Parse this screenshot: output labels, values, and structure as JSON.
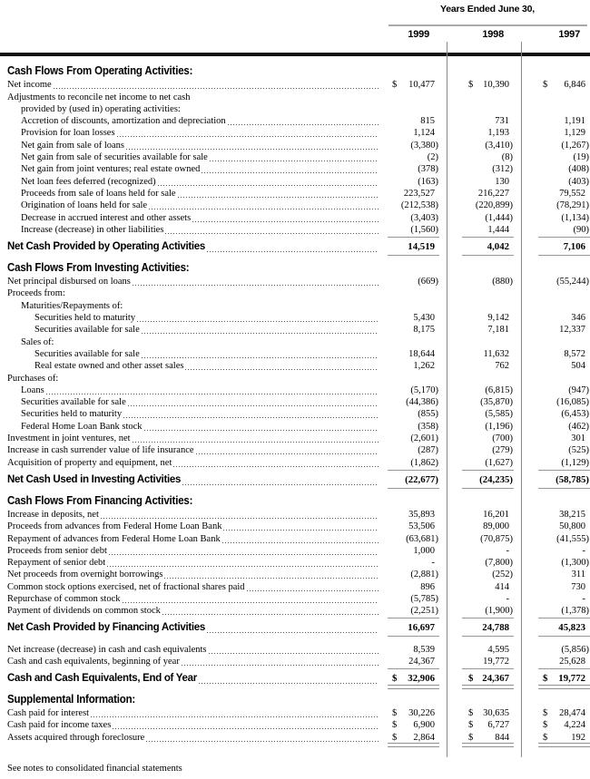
{
  "colors": {
    "thick_rule": "#111111",
    "column_divider": "#8a8a8a",
    "underline": "#979797",
    "text": "#000000"
  },
  "header": {
    "period_label": "Years Ended June 30,",
    "years": [
      "1999",
      "1998",
      "1997"
    ]
  },
  "statement": {
    "sections": [
      {
        "title": "Cash Flows From Operating Activities:",
        "rows": [
          {
            "type": "item",
            "label": "Net income",
            "indent": 0,
            "dollar": true,
            "values": [
              "10,477",
              "10,390",
              "6,846"
            ]
          },
          {
            "type": "plain",
            "label": "Adjustments to reconcile net income to net cash",
            "indent": 0
          },
          {
            "type": "plain",
            "label": "provided by (used in) operating activities:",
            "indent": 1
          },
          {
            "type": "item",
            "label": "Accretion of discounts, amortization and depreciation",
            "indent": 1,
            "values": [
              "815",
              "731",
              "1,191"
            ]
          },
          {
            "type": "item",
            "label": "Provision for loan losses",
            "indent": 1,
            "values": [
              "1,124",
              "1,193",
              "1,129"
            ]
          },
          {
            "type": "item",
            "label": "Net gain from sale of loans",
            "indent": 1,
            "values": [
              "(3,380)",
              "(3,410)",
              "(1,267)"
            ]
          },
          {
            "type": "item",
            "label": "Net gain from sale of securities available for sale",
            "indent": 1,
            "values": [
              "(2)",
              "(8)",
              "(19)"
            ]
          },
          {
            "type": "item",
            "label": "Net gain from joint ventures; real estate owned",
            "indent": 1,
            "values": [
              "(378)",
              "(312)",
              "(408)"
            ]
          },
          {
            "type": "item",
            "label": "Net loan fees deferred (recognized)",
            "indent": 1,
            "values": [
              "(163)",
              "130",
              "(403)"
            ]
          },
          {
            "type": "item",
            "label": "Proceeds from sale of loans held for sale",
            "indent": 1,
            "values": [
              "223,527",
              "216,227",
              "79,552"
            ]
          },
          {
            "type": "item",
            "label": "Origination of loans held for sale",
            "indent": 1,
            "values": [
              "(212,538)",
              "(220,899)",
              "(78,291)"
            ]
          },
          {
            "type": "item",
            "label": "Decrease in accrued interest and other assets",
            "indent": 1,
            "values": [
              "(3,403)",
              "(1,444)",
              "(1,134)"
            ]
          },
          {
            "type": "item",
            "label": "Increase (decrease) in other liabilities",
            "indent": 1,
            "values": [
              "(1,560)",
              "1,444",
              "(90)"
            ],
            "underline": 1
          },
          {
            "type": "total",
            "label": "Net Cash Provided by Operating Activities",
            "values": [
              "14,519",
              "4,042",
              "7,106"
            ],
            "underline": 1
          }
        ]
      },
      {
        "title": "Cash Flows From Investing Activities:",
        "rows": [
          {
            "type": "item",
            "label": "Net principal disbursed on loans",
            "indent": 0,
            "values": [
              "(669)",
              "(880)",
              "(55,244)"
            ]
          },
          {
            "type": "plain",
            "label": "Proceeds from:",
            "indent": 0
          },
          {
            "type": "plain",
            "label": "Maturities/Repayments of:",
            "indent": 1
          },
          {
            "type": "item",
            "label": "Securities held to maturity",
            "indent": 2,
            "values": [
              "5,430",
              "9,142",
              "346"
            ]
          },
          {
            "type": "item",
            "label": "Securities available for sale",
            "indent": 2,
            "values": [
              "8,175",
              "7,181",
              "12,337"
            ]
          },
          {
            "type": "plain",
            "label": "Sales of:",
            "indent": 1
          },
          {
            "type": "item",
            "label": "Securities available for sale",
            "indent": 2,
            "values": [
              "18,644",
              "11,632",
              "8,572"
            ]
          },
          {
            "type": "item",
            "label": "Real estate owned and other asset sales",
            "indent": 2,
            "values": [
              "1,262",
              "762",
              "504"
            ]
          },
          {
            "type": "plain",
            "label": "Purchases of:",
            "indent": 0
          },
          {
            "type": "item",
            "label": "Loans",
            "indent": 1,
            "values": [
              "(5,170)",
              "(6,815)",
              "(947)"
            ]
          },
          {
            "type": "item",
            "label": "Securities available for sale",
            "indent": 1,
            "values": [
              "(44,386)",
              "(35,870)",
              "(16,085)"
            ]
          },
          {
            "type": "item",
            "label": "Securities held to maturity",
            "indent": 1,
            "values": [
              "(855)",
              "(5,585)",
              "(6,453)"
            ]
          },
          {
            "type": "item",
            "label": "Federal Home Loan Bank stock",
            "indent": 1,
            "values": [
              "(358)",
              "(1,196)",
              "(462)"
            ]
          },
          {
            "type": "item",
            "label": "Investment in joint ventures, net",
            "indent": 0,
            "values": [
              "(2,601)",
              "(700)",
              "301"
            ]
          },
          {
            "type": "item",
            "label": "Increase in cash surrender value of life insurance",
            "indent": 0,
            "values": [
              "(287)",
              "(279)",
              "(525)"
            ]
          },
          {
            "type": "item",
            "label": "Acquisition of property and equipment, net",
            "indent": 0,
            "values": [
              "(1,862)",
              "(1,627)",
              "(1,129)"
            ],
            "underline": 1
          },
          {
            "type": "total",
            "label": "Net Cash Used in Investing Activities",
            "values": [
              "(22,677)",
              "(24,235)",
              "(58,785)"
            ],
            "underline": 1
          }
        ]
      },
      {
        "title": "Cash Flows From Financing Activities:",
        "rows": [
          {
            "type": "item",
            "label": "Increase in deposits, net",
            "indent": 0,
            "values": [
              "35,893",
              "16,201",
              "38,215"
            ]
          },
          {
            "type": "item",
            "label": "Proceeds from advances from Federal Home Loan Bank",
            "indent": 0,
            "values": [
              "53,506",
              "89,000",
              "50,800"
            ]
          },
          {
            "type": "item",
            "label": "Repayment of advances from Federal Home Loan Bank",
            "indent": 0,
            "values": [
              "(63,681)",
              "(70,875)",
              "(41,555)"
            ]
          },
          {
            "type": "item",
            "label": "Proceeds from senior debt",
            "indent": 0,
            "values": [
              "1,000",
              "-",
              "-"
            ]
          },
          {
            "type": "item",
            "label": "Repayment of senior debt",
            "indent": 0,
            "values": [
              "-",
              "(7,800)",
              "(1,300)"
            ]
          },
          {
            "type": "item",
            "label": "Net proceeds from overnight borrowings",
            "indent": 0,
            "values": [
              "(2,881)",
              "(252)",
              "311"
            ]
          },
          {
            "type": "item",
            "label": "Common stock options exercised, net of fractional shares paid",
            "indent": 0,
            "values": [
              "896",
              "414",
              "730"
            ]
          },
          {
            "type": "item",
            "label": "Repurchase of common stock",
            "indent": 0,
            "values": [
              "(5,785)",
              "-",
              "-"
            ]
          },
          {
            "type": "item",
            "label": "Payment of dividends on common stock",
            "indent": 0,
            "values": [
              "(2,251)",
              "(1,900)",
              "(1,378)"
            ],
            "underline": 1
          },
          {
            "type": "total",
            "label": "Net Cash Provided by Financing Activities",
            "values": [
              "16,697",
              "24,788",
              "45,823"
            ],
            "underline": 1
          }
        ]
      },
      {
        "title": null,
        "gap": true,
        "rows": [
          {
            "type": "item",
            "label": "Net increase (decrease) in cash and cash equivalents",
            "indent": 0,
            "values": [
              "8,539",
              "4,595",
              "(5,856)"
            ]
          },
          {
            "type": "item",
            "label": "Cash and cash equivalents, beginning of year",
            "indent": 0,
            "values": [
              "24,367",
              "19,772",
              "25,628"
            ],
            "underline": 1
          },
          {
            "type": "total",
            "label": "Cash and Cash Equivalents, End of Year",
            "dollar": true,
            "values": [
              "32,906",
              "24,367",
              "19,772"
            ],
            "underline": 2
          }
        ]
      },
      {
        "title": "Supplemental Information:",
        "rows": [
          {
            "type": "item",
            "label": "Cash paid for interest",
            "indent": 0,
            "dollar": true,
            "values": [
              "30,226",
              "30,635",
              "28,474"
            ]
          },
          {
            "type": "item",
            "label": "Cash paid for income taxes",
            "indent": 0,
            "dollar": true,
            "values": [
              "6,900",
              "6,727",
              "4,224"
            ]
          },
          {
            "type": "item",
            "label": "Assets acquired through foreclosure",
            "indent": 0,
            "dollar": true,
            "values": [
              "2,864",
              "844",
              "192"
            ],
            "underline": 2
          }
        ]
      }
    ]
  },
  "footer": {
    "note": "See notes to consolidated financial statements"
  }
}
